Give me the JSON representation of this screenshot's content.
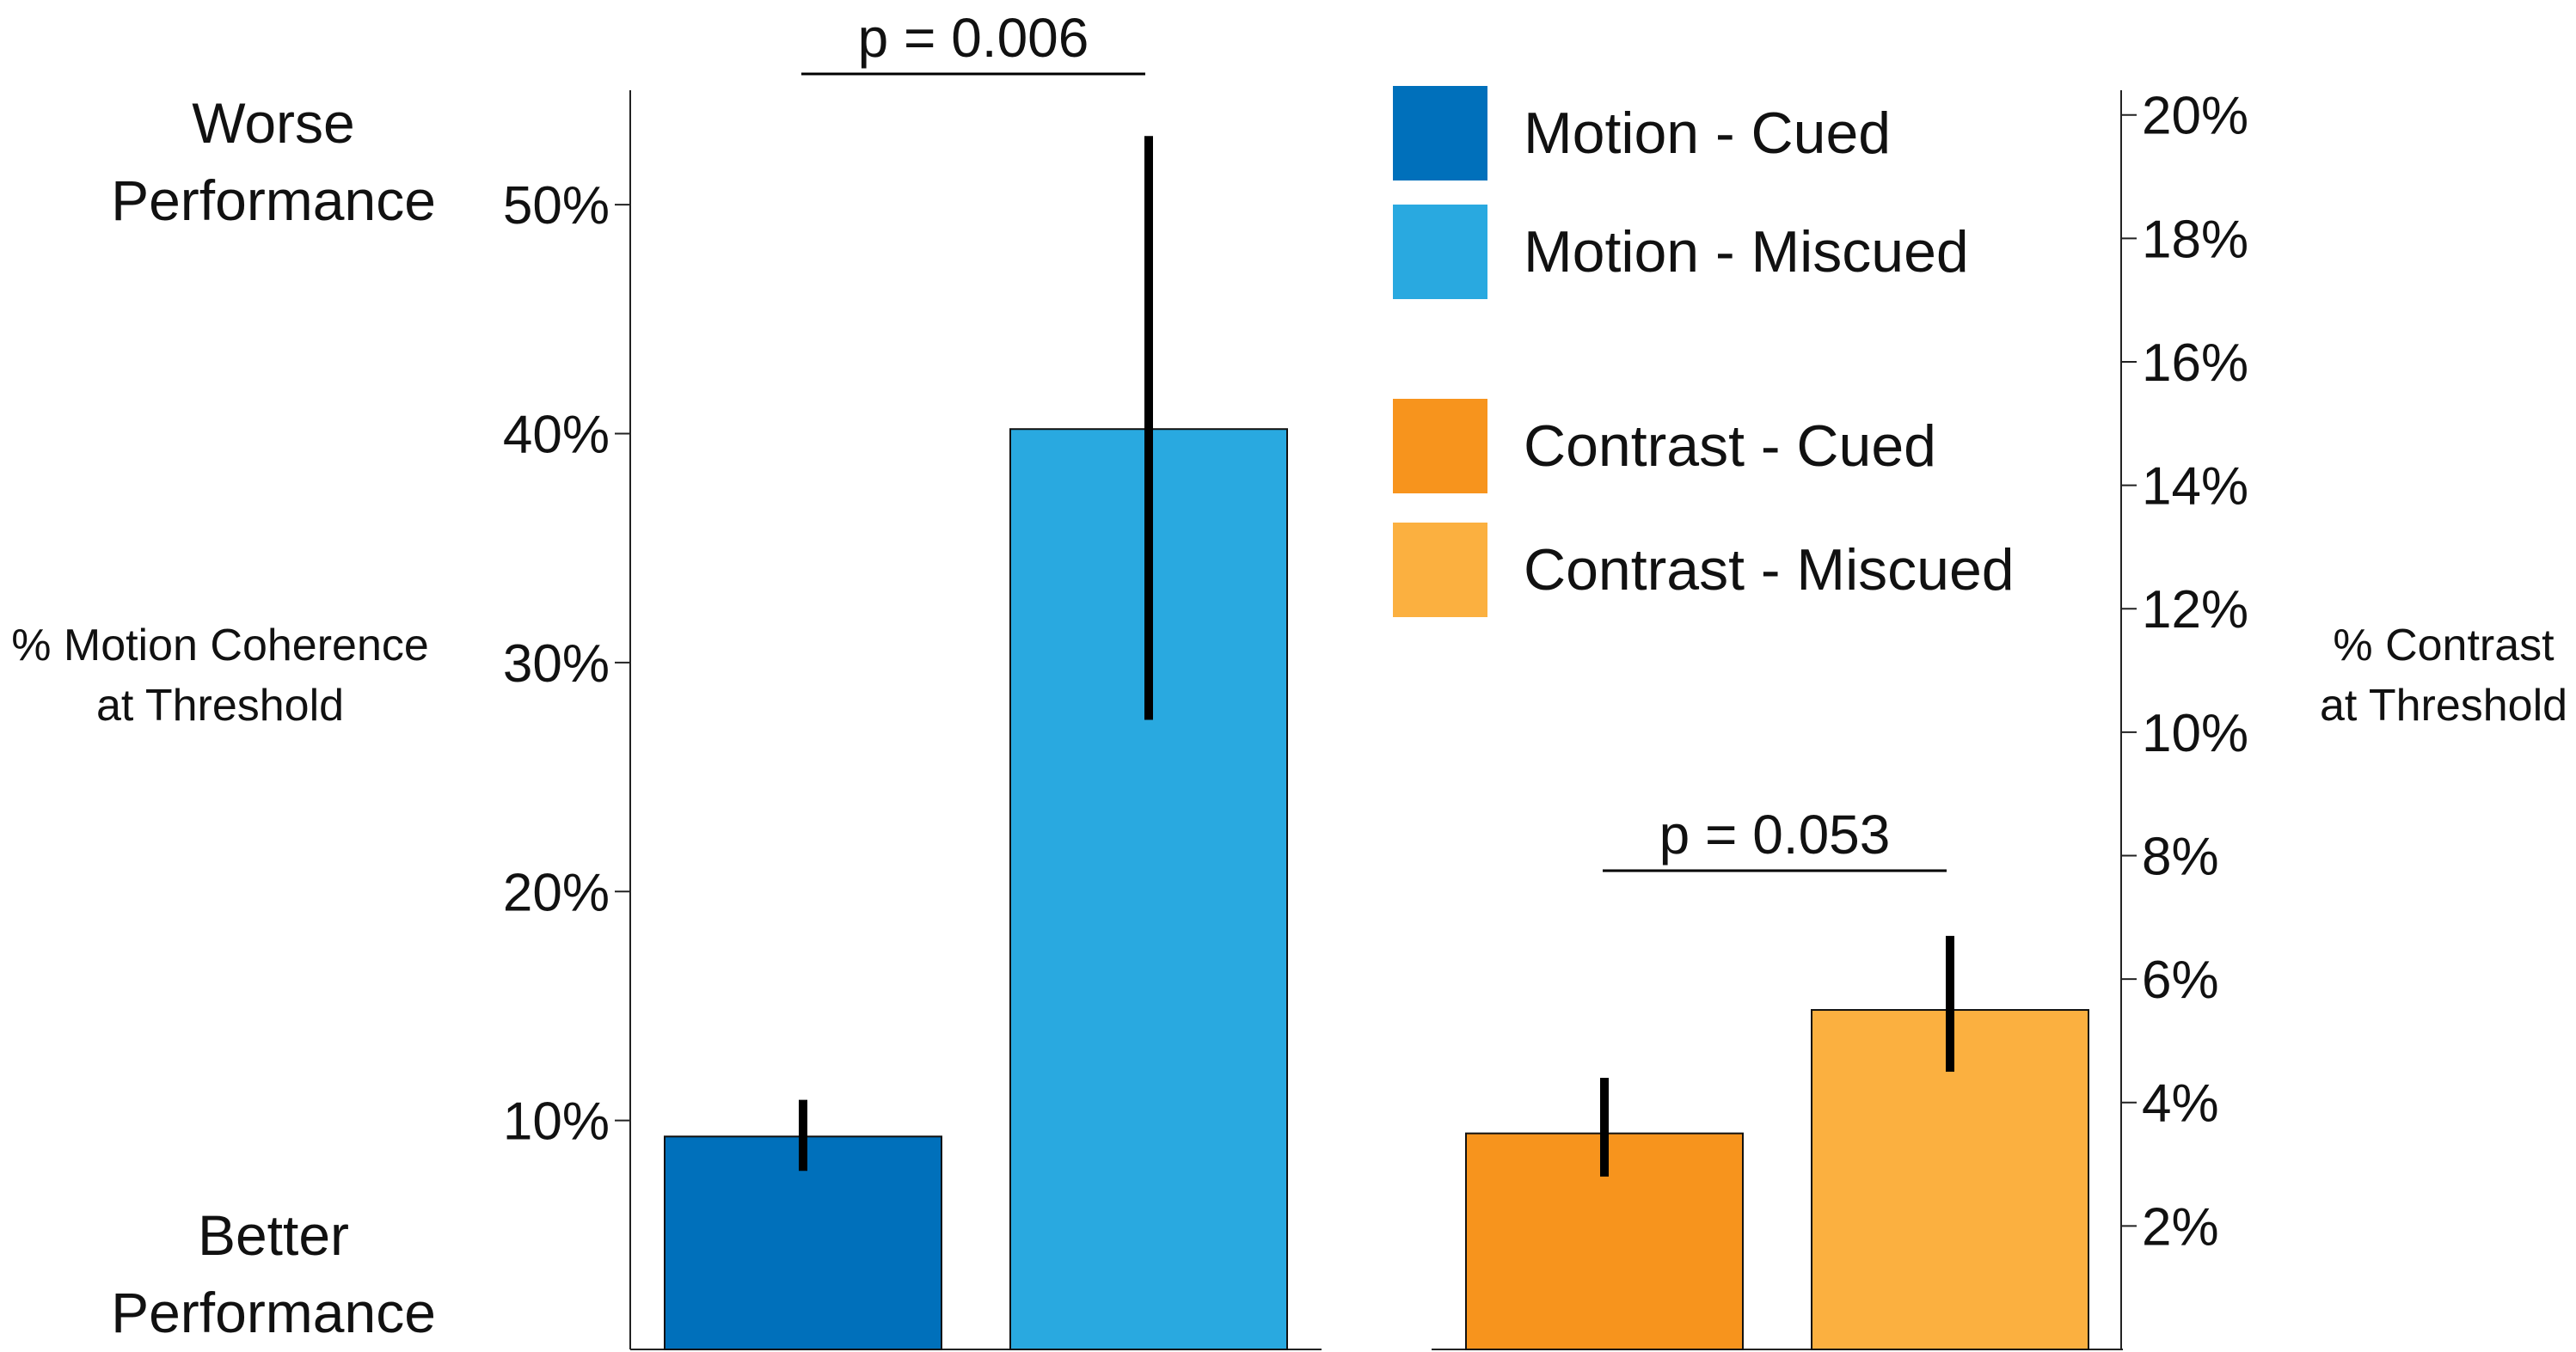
{
  "labels": {
    "worse_line1": "Worse",
    "worse_line2": "Performance",
    "better_line1": "Better",
    "better_line2": "Performance",
    "left_axis_line1": "% Motion Coherence",
    "left_axis_line2": "at Threshold",
    "right_axis_line1": "% Contrast",
    "right_axis_line2": "at Threshold"
  },
  "chart_data": [
    {
      "type": "bar",
      "panel": "motion",
      "categories": [
        "Motion - Cued",
        "Motion - Miscued"
      ],
      "values": [
        9.3,
        40.2
      ],
      "error_bars": [
        [
          7.8,
          10.9
        ],
        [
          27.5,
          53.0
        ]
      ],
      "colors": [
        "#0070BB",
        "#29A9E0"
      ],
      "ylabel": "% Motion Coherence at Threshold",
      "ylim": [
        0,
        55
      ],
      "yticks": [
        10,
        20,
        30,
        40,
        50
      ],
      "ytick_labels": [
        "10%",
        "20%",
        "30%",
        "40%",
        "50%"
      ],
      "y_axis_side": "left",
      "annotation": "p = 0.006"
    },
    {
      "type": "bar",
      "panel": "contrast",
      "categories": [
        "Contrast - Cued",
        "Contrast - Miscued"
      ],
      "values": [
        3.5,
        5.5
      ],
      "error_bars": [
        [
          2.8,
          4.4
        ],
        [
          4.5,
          6.7
        ]
      ],
      "colors": [
        "#F7941D",
        "#FBB040"
      ],
      "ylabel": "% Contrast at Threshold",
      "ylim": [
        0,
        20.4
      ],
      "yticks": [
        2,
        4,
        6,
        8,
        10,
        12,
        14,
        16,
        18,
        20
      ],
      "ytick_labels": [
        "2%",
        "4%",
        "6%",
        "8%",
        "10%",
        "12%",
        "14%",
        "16%",
        "18%",
        "20%"
      ],
      "y_axis_side": "right",
      "annotation": "p = 0.053"
    }
  ],
  "legend": {
    "position": "top-center",
    "items": [
      {
        "label": "Motion - Cued",
        "color": "#0070BB"
      },
      {
        "label": "Motion - Miscued",
        "color": "#29A9E0"
      },
      {
        "label": "Contrast - Cued",
        "color": "#F7941D"
      },
      {
        "label": "Contrast - Miscued",
        "color": "#FBB040"
      }
    ]
  }
}
